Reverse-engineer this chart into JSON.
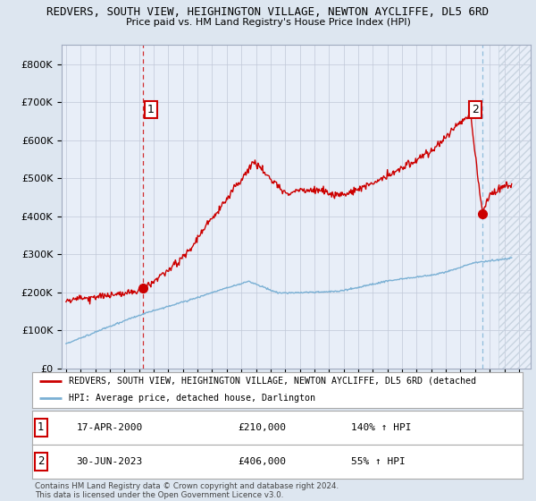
{
  "title": "REDVERS, SOUTH VIEW, HEIGHINGTON VILLAGE, NEWTON AYCLIFFE, DL5 6RD",
  "subtitle": "Price paid vs. HM Land Registry's House Price Index (HPI)",
  "ylim": [
    0,
    850000
  ],
  "yticks": [
    0,
    100000,
    200000,
    300000,
    400000,
    500000,
    600000,
    700000,
    800000
  ],
  "ytick_labels": [
    "£0",
    "£100K",
    "£200K",
    "£300K",
    "£400K",
    "£500K",
    "£600K",
    "£700K",
    "£800K"
  ],
  "xlim_start": 1994.7,
  "xlim_end": 2026.8,
  "xticks": [
    1995,
    1996,
    1997,
    1998,
    1999,
    2000,
    2001,
    2002,
    2003,
    2004,
    2005,
    2006,
    2007,
    2008,
    2009,
    2010,
    2011,
    2012,
    2013,
    2014,
    2015,
    2016,
    2017,
    2018,
    2019,
    2020,
    2021,
    2022,
    2023,
    2024,
    2025,
    2026
  ],
  "property_color": "#cc0000",
  "hpi_color": "#7ab0d4",
  "sale1_x": 2000.29,
  "sale1_y": 210000,
  "sale1_label": "1",
  "sale1_date": "17-APR-2000",
  "sale1_price": "£210,000",
  "sale1_hpi": "140% ↑ HPI",
  "sale2_x": 2023.5,
  "sale2_y": 406000,
  "sale2_label": "2",
  "sale2_date": "30-JUN-2023",
  "sale2_price": "£406,000",
  "sale2_hpi": "55% ↑ HPI",
  "legend_property": "REDVERS, SOUTH VIEW, HEIGHINGTON VILLAGE, NEWTON AYCLIFFE, DL5 6RD (detached",
  "legend_hpi": "HPI: Average price, detached house, Darlington",
  "footnote": "Contains HM Land Registry data © Crown copyright and database right 2024.\nThis data is licensed under the Open Government Licence v3.0.",
  "bg_color": "#dde6f0",
  "plot_bg_color": "#e8eef8",
  "hatch_color": "#c8d4e0"
}
